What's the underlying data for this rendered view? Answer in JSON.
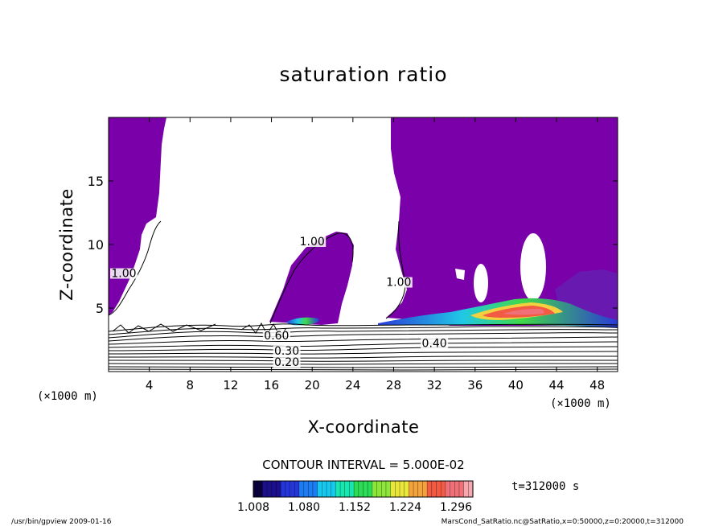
{
  "chart_data": {
    "type": "contour",
    "title": "saturation ratio",
    "xlabel": "X-coordinate",
    "ylabel": "Z-coordinate",
    "x_unit_label": "(×1000 m)",
    "x_unit_label_right": "(×1000 m)",
    "xlim": [
      0,
      50
    ],
    "ylim": [
      0,
      20
    ],
    "xticks": [
      4,
      8,
      12,
      16,
      20,
      24,
      28,
      32,
      36,
      40,
      44,
      48
    ],
    "yticks": [
      5,
      10,
      15
    ],
    "contour_interval_text": "CONTOUR INTERVAL = 5.000E-02",
    "time_text": "t=312000 s",
    "colorbar": {
      "min": 1.008,
      "max": 1.32,
      "tick_labels": [
        "1.008",
        "1.080",
        "1.152",
        "1.224",
        "1.296"
      ],
      "tick_values": [
        1.008,
        1.08,
        1.152,
        1.224,
        1.296
      ],
      "colors": [
        "#0a003c",
        "#1c0f8c",
        "#2436d8",
        "#1e7cf2",
        "#16c8ee",
        "#17e6b0",
        "#2cdc54",
        "#8ee63a",
        "#e8e63a",
        "#f4a23c",
        "#f25a44",
        "#f0707a",
        "#f6a8b0"
      ]
    },
    "contour_labels": [
      {
        "text": "1.00",
        "x": 1.5,
        "y": 7.5
      },
      {
        "text": "1.00",
        "x": 20.0,
        "y": 10.0
      },
      {
        "text": "1.00",
        "x": 28.5,
        "y": 6.8
      },
      {
        "text": "0.40",
        "x": 32.0,
        "y": 2.0
      },
      {
        "text": "0.30",
        "x": 17.5,
        "y": 1.4
      },
      {
        "text": "0.20",
        "x": 17.5,
        "y": 0.5
      },
      {
        "text": "0.60",
        "x": 16.5,
        "y": 2.6
      }
    ],
    "fill_color": "#7a00aa",
    "grid": false
  },
  "footer": {
    "left": "/usr/bin/gpview   2009-01-16",
    "right": "MarsCond_SatRatio.nc@SatRatio,x=0:50000,z=0:20000,t=312000"
  }
}
